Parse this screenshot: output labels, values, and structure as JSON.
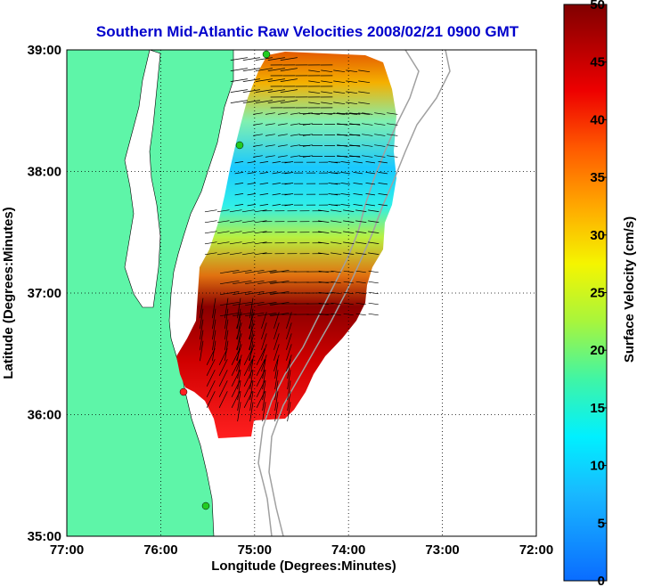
{
  "chart_data": {
    "type": "heatmap",
    "title": "Southern Mid-Atlantic Raw Velocities 2008/02/21 0900 GMT",
    "xlabel": "Longitude (Degrees:Minutes)",
    "ylabel": "Latitude (Degrees:Minutes)",
    "colorbar_label": "Surface Velocity (cm/s)",
    "x_ticks": [
      "77:00",
      "76:00",
      "75:00",
      "74:00",
      "73:00",
      "72:00"
    ],
    "y_ticks": [
      "39:00",
      "38:00",
      "37:00",
      "36:00",
      "35:00"
    ],
    "xlim": [
      -77,
      -72
    ],
    "ylim": [
      35,
      39
    ],
    "colorbar_ticks": [
      "0",
      "5",
      "10",
      "15",
      "20",
      "25",
      "30",
      "35",
      "40",
      "45",
      "50"
    ],
    "clim": [
      0,
      50
    ],
    "grid": true,
    "colors": {
      "land": "#5ef5a8",
      "ocean": "#ffffff",
      "title": "#0000cc",
      "bathymetry": "#a0a0a0",
      "site_marker": "#22cc22",
      "site_marker_active": "#ff2020"
    },
    "velocity_field": [
      {
        "lon": -74.9,
        "lat": 38.75,
        "speed": 38
      },
      {
        "lon": -74.5,
        "lat": 38.7,
        "speed": 22
      },
      {
        "lon": -74.1,
        "lat": 38.65,
        "speed": 20
      },
      {
        "lon": -74.7,
        "lat": 38.3,
        "speed": 14
      },
      {
        "lon": -74.2,
        "lat": 38.3,
        "speed": 17
      },
      {
        "lon": -73.8,
        "lat": 38.3,
        "speed": 18
      },
      {
        "lon": -74.9,
        "lat": 37.9,
        "speed": 10
      },
      {
        "lon": -74.4,
        "lat": 37.9,
        "speed": 12
      },
      {
        "lon": -73.9,
        "lat": 37.9,
        "speed": 13
      },
      {
        "lon": -75.2,
        "lat": 37.5,
        "speed": 22
      },
      {
        "lon": -74.6,
        "lat": 37.5,
        "speed": 14
      },
      {
        "lon": -74.0,
        "lat": 37.5,
        "speed": 18
      },
      {
        "lon": -75.0,
        "lat": 37.0,
        "speed": 45
      },
      {
        "lon": -74.5,
        "lat": 37.0,
        "speed": 30
      },
      {
        "lon": -74.0,
        "lat": 37.0,
        "speed": 15
      },
      {
        "lon": -75.3,
        "lat": 36.7,
        "speed": 48
      },
      {
        "lon": -74.9,
        "lat": 36.6,
        "speed": 38
      },
      {
        "lon": -75.2,
        "lat": 36.3,
        "speed": 42
      },
      {
        "lon": -74.9,
        "lat": 36.2,
        "speed": 46
      }
    ]
  }
}
